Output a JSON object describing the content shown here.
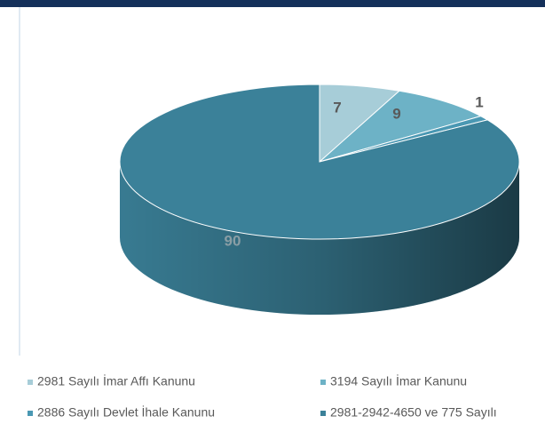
{
  "chart_data": {
    "type": "pie",
    "series": [
      {
        "name": "2981 Sayılı İmar Affı Kanunu",
        "color": "#a7cdd8",
        "values": [
          7
        ]
      },
      {
        "name": "3194 Sayılı İmar Kanunu",
        "color": "#6db2c6",
        "values": [
          9
        ]
      },
      {
        "name": "2886 Sayılı Devlet İhale Kanunu",
        "color": "#4a98b3",
        "values": [
          1
        ]
      },
      {
        "name": "2981-2942-4650 ve 775 Sayılı",
        "color": "#3b8199",
        "values": [
          90
        ]
      }
    ]
  }
}
